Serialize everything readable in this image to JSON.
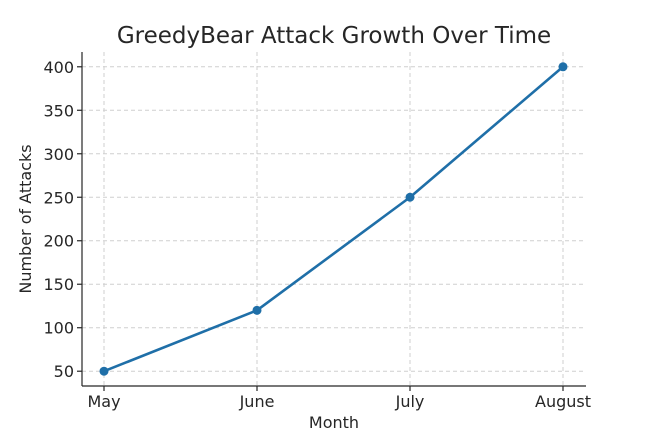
{
  "chart_data": {
    "type": "line",
    "title": "GreedyBear Attack Growth Over Time",
    "xlabel": "Month",
    "ylabel": "Number of Attacks",
    "categories": [
      "May",
      "June",
      "July",
      "August"
    ],
    "series": [
      {
        "name": "Attacks",
        "values": [
          50,
          120,
          250,
          400
        ],
        "color": "#1f6fa8"
      }
    ],
    "yticks": [
      50,
      100,
      150,
      200,
      250,
      300,
      350,
      400
    ],
    "ylim": [
      33,
      417
    ],
    "grid": true,
    "legend": "none"
  }
}
